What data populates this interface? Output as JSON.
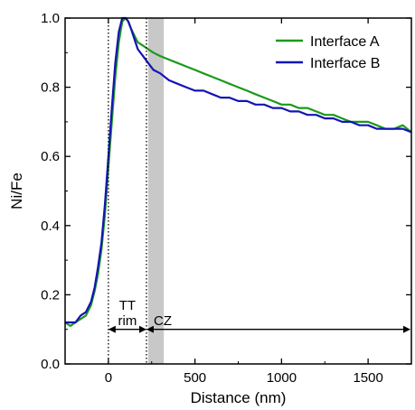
{
  "chart_data": {
    "type": "line",
    "xlabel": "Distance (nm)",
    "ylabel": "Ni/Fe",
    "xlim": [
      -250,
      1750
    ],
    "ylim": [
      0.0,
      1.0
    ],
    "grid": false,
    "legend_position": "top-right",
    "x_ticks": [
      0,
      500,
      1000,
      1500
    ],
    "x_tick_labels": [
      "0",
      "500",
      "1000",
      "1500"
    ],
    "y_ticks": [
      0.0,
      0.2,
      0.4,
      0.6,
      0.8,
      1.0
    ],
    "y_tick_labels": [
      "0.0",
      "0.2",
      "0.4",
      "0.6",
      "0.8",
      "1.0"
    ],
    "series": [
      {
        "name": "Interface A",
        "color": "#1a9a1a",
        "points": [
          [
            -250,
            0.12
          ],
          [
            -220,
            0.11
          ],
          [
            -190,
            0.12
          ],
          [
            -160,
            0.13
          ],
          [
            -130,
            0.14
          ],
          [
            -100,
            0.17
          ],
          [
            -80,
            0.21
          ],
          [
            -60,
            0.26
          ],
          [
            -40,
            0.33
          ],
          [
            -20,
            0.43
          ],
          [
            0,
            0.57
          ],
          [
            20,
            0.7
          ],
          [
            40,
            0.83
          ],
          [
            60,
            0.93
          ],
          [
            80,
            0.99
          ],
          [
            100,
            1.0
          ],
          [
            115,
            0.99
          ],
          [
            130,
            0.97
          ],
          [
            150,
            0.95
          ],
          [
            170,
            0.93
          ],
          [
            200,
            0.92
          ],
          [
            230,
            0.91
          ],
          [
            260,
            0.9
          ],
          [
            300,
            0.89
          ],
          [
            350,
            0.88
          ],
          [
            400,
            0.87
          ],
          [
            450,
            0.86
          ],
          [
            500,
            0.85
          ],
          [
            550,
            0.84
          ],
          [
            600,
            0.83
          ],
          [
            650,
            0.82
          ],
          [
            700,
            0.81
          ],
          [
            750,
            0.8
          ],
          [
            800,
            0.79
          ],
          [
            850,
            0.78
          ],
          [
            900,
            0.77
          ],
          [
            950,
            0.76
          ],
          [
            1000,
            0.75
          ],
          [
            1050,
            0.75
          ],
          [
            1100,
            0.74
          ],
          [
            1150,
            0.74
          ],
          [
            1200,
            0.73
          ],
          [
            1250,
            0.72
          ],
          [
            1300,
            0.72
          ],
          [
            1350,
            0.71
          ],
          [
            1400,
            0.7
          ],
          [
            1450,
            0.7
          ],
          [
            1500,
            0.7
          ],
          [
            1550,
            0.69
          ],
          [
            1600,
            0.68
          ],
          [
            1650,
            0.68
          ],
          [
            1700,
            0.69
          ],
          [
            1750,
            0.67
          ]
        ]
      },
      {
        "name": "Interface B",
        "color": "#1414b4",
        "points": [
          [
            -250,
            0.12
          ],
          [
            -220,
            0.12
          ],
          [
            -190,
            0.12
          ],
          [
            -160,
            0.14
          ],
          [
            -130,
            0.15
          ],
          [
            -100,
            0.18
          ],
          [
            -80,
            0.22
          ],
          [
            -60,
            0.28
          ],
          [
            -40,
            0.35
          ],
          [
            -20,
            0.46
          ],
          [
            0,
            0.6
          ],
          [
            20,
            0.74
          ],
          [
            40,
            0.87
          ],
          [
            60,
            0.96
          ],
          [
            80,
            1.0
          ],
          [
            100,
            1.0
          ],
          [
            115,
            0.99
          ],
          [
            130,
            0.97
          ],
          [
            150,
            0.94
          ],
          [
            170,
            0.91
          ],
          [
            200,
            0.89
          ],
          [
            230,
            0.87
          ],
          [
            260,
            0.85
          ],
          [
            300,
            0.84
          ],
          [
            350,
            0.82
          ],
          [
            400,
            0.81
          ],
          [
            450,
            0.8
          ],
          [
            500,
            0.79
          ],
          [
            550,
            0.79
          ],
          [
            600,
            0.78
          ],
          [
            650,
            0.77
          ],
          [
            700,
            0.77
          ],
          [
            750,
            0.76
          ],
          [
            800,
            0.76
          ],
          [
            850,
            0.75
          ],
          [
            900,
            0.75
          ],
          [
            950,
            0.74
          ],
          [
            1000,
            0.74
          ],
          [
            1050,
            0.73
          ],
          [
            1100,
            0.73
          ],
          [
            1150,
            0.72
          ],
          [
            1200,
            0.72
          ],
          [
            1250,
            0.71
          ],
          [
            1300,
            0.71
          ],
          [
            1350,
            0.7
          ],
          [
            1400,
            0.7
          ],
          [
            1450,
            0.69
          ],
          [
            1500,
            0.69
          ],
          [
            1550,
            0.68
          ],
          [
            1600,
            0.68
          ],
          [
            1650,
            0.68
          ],
          [
            1700,
            0.68
          ],
          [
            1750,
            0.67
          ]
        ]
      }
    ],
    "interface_lines_x": [
      0,
      220
    ],
    "shaded_region_x": [
      230,
      320
    ],
    "shaded_region_color": "#c8c8c8",
    "annotations": {
      "tt_line1": "TT",
      "tt_line2": "rim",
      "cz": "CZ"
    }
  }
}
